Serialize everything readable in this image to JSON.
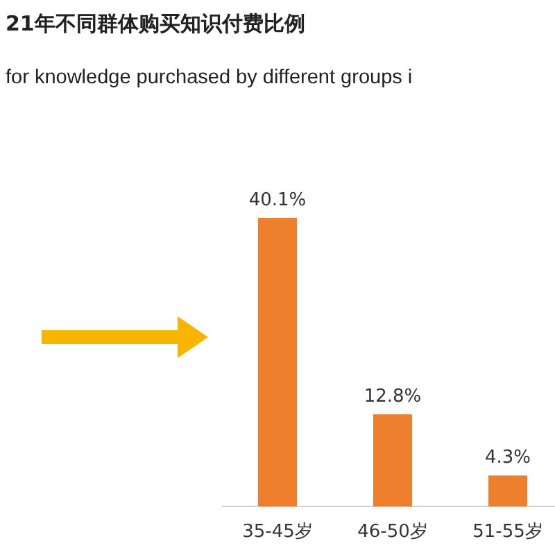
{
  "chart_data": {
    "type": "bar",
    "title": "21年不同群体购买知识付费比例",
    "subtitle": "for knowledge purchased by different groups i",
    "categories": [
      "35-45岁",
      "46-50岁",
      "51-55岁"
    ],
    "values": [
      40.1,
      12.8,
      4.3
    ],
    "value_labels": [
      "40.1%",
      "12.8%",
      "4.3%"
    ],
    "color": "#ee7f2d"
  }
}
